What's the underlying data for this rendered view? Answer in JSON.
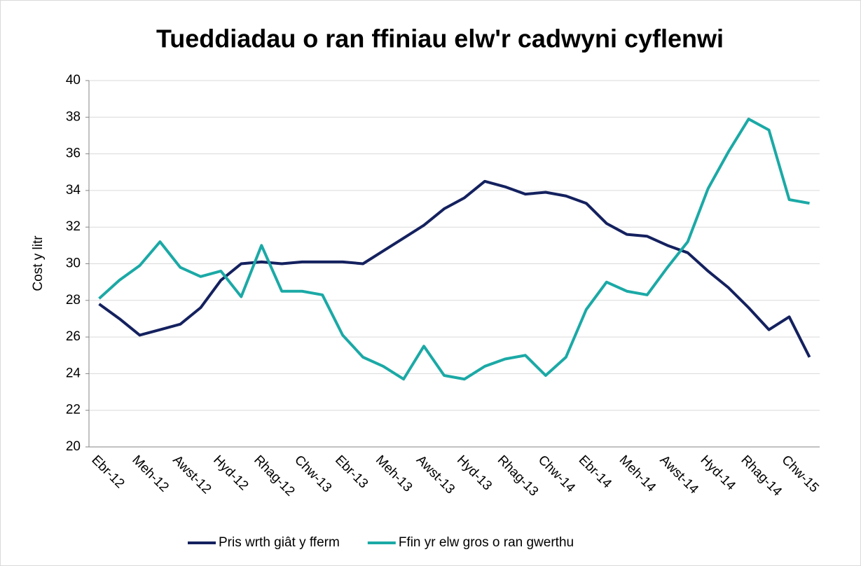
{
  "chart_data": {
    "type": "line",
    "title": "Tueddiadau o ran ffiniau elw'r cadwyni cyflenwi",
    "y_label": "Cost y litr",
    "categories": [
      "Ebr-12",
      null,
      "Meh-12",
      null,
      "Awst-12",
      null,
      "Hyd-12",
      null,
      "Rhag-12",
      null,
      "Chw-13",
      null,
      "Ebr-13",
      null,
      "Meh-13",
      null,
      "Awst-13",
      null,
      "Hyd-13",
      null,
      "Rhag-13",
      null,
      "Chw-14",
      null,
      "Ebr-14",
      null,
      "Meh-14",
      null,
      "Awst-14",
      null,
      "Hyd-14",
      null,
      "Rhag-14",
      null,
      "Chw-15",
      null
    ],
    "series": [
      {
        "name": "Pris wrth giât y fferm",
        "color": "#14215f",
        "values": [
          27.8,
          27.0,
          26.1,
          26.4,
          26.7,
          27.6,
          29.1,
          30.0,
          30.1,
          30.0,
          30.1,
          30.1,
          30.1,
          30.0,
          30.7,
          31.4,
          32.1,
          33.0,
          33.6,
          34.5,
          34.2,
          33.8,
          33.9,
          33.7,
          33.3,
          32.2,
          31.6,
          31.5,
          31.0,
          30.6,
          29.6,
          28.7,
          27.6,
          26.4,
          27.1,
          24.9
        ]
      },
      {
        "name": "Ffin yr elw gros o ran gwerthu",
        "color": "#1ba9a6",
        "values": [
          28.1,
          29.1,
          29.9,
          31.2,
          29.8,
          29.3,
          29.6,
          28.2,
          31.0,
          28.5,
          28.5,
          28.3,
          26.1,
          24.9,
          24.4,
          23.7,
          25.5,
          23.9,
          23.7,
          24.4,
          24.8,
          25.0,
          23.9,
          24.9,
          27.5,
          29.0,
          28.5,
          28.3,
          29.8,
          31.2,
          34.1,
          36.1,
          37.9,
          37.3,
          33.5,
          33.3
        ]
      }
    ],
    "ylim": [
      20,
      40
    ],
    "yticks": [
      20,
      22,
      24,
      26,
      28,
      30,
      32,
      34,
      36,
      38,
      40
    ],
    "grid": true,
    "legend": "bottom"
  }
}
